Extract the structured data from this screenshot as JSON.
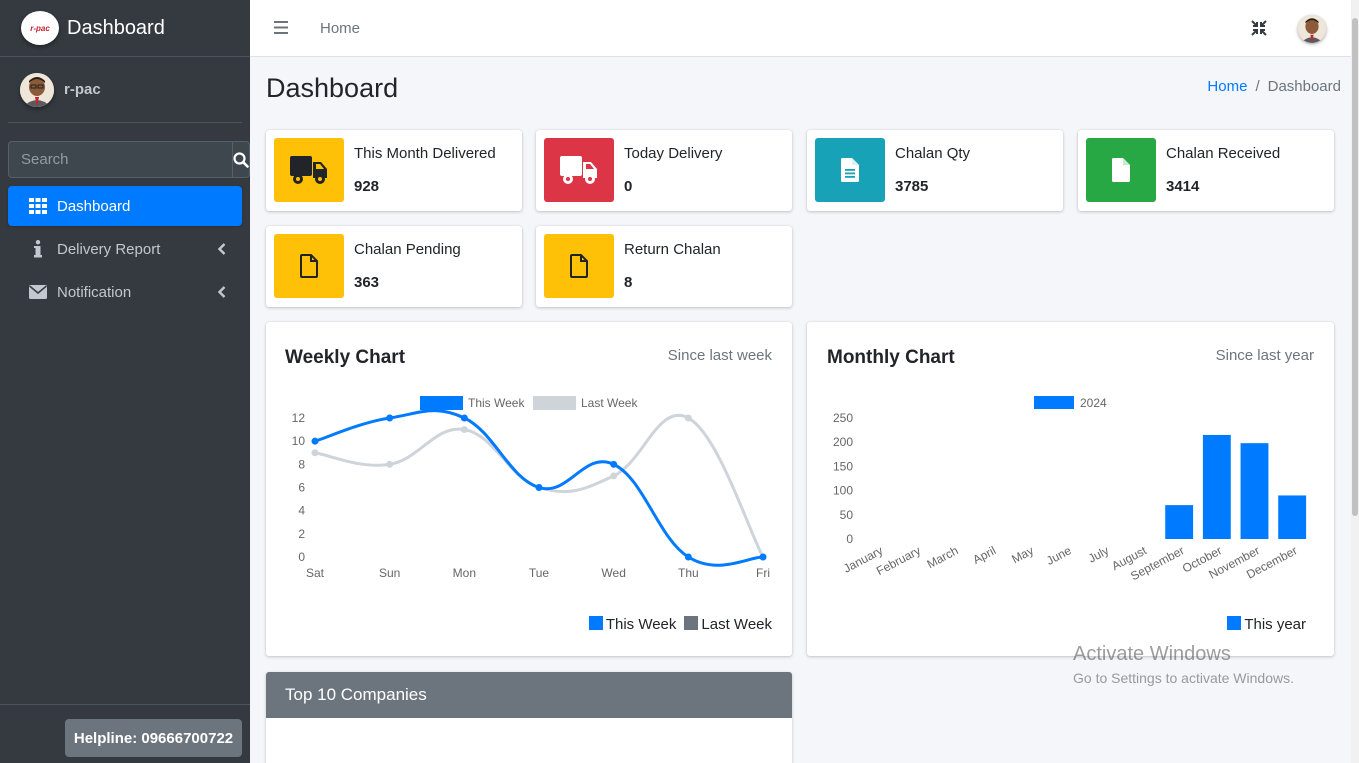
{
  "sidebar": {
    "brand_logo_text": "r-pac",
    "brand": "Dashboard",
    "user": "r-pac",
    "search_placeholder": "Search",
    "items": [
      {
        "label": "Dashboard",
        "icon": "grid-icon",
        "active": true
      },
      {
        "label": "Delivery Report",
        "icon": "info-icon",
        "active": false
      },
      {
        "label": "Notification",
        "icon": "envelope-icon",
        "active": false
      }
    ],
    "helpline": "Helpline: 09666700722"
  },
  "topbar": {
    "home": "Home"
  },
  "page": {
    "title": "Dashboard",
    "breadcrumb": {
      "home": "Home",
      "sep": "/",
      "current": "Dashboard"
    }
  },
  "info_boxes": [
    {
      "label": "This Month Delivered",
      "value": "928",
      "color": "#ffc107",
      "icon": "truck-icon"
    },
    {
      "label": "Today Delivery",
      "value": "0",
      "color": "#dc3545",
      "icon": "truck-icon"
    },
    {
      "label": "Chalan Qty",
      "value": "3785",
      "color": "#17a2b8",
      "icon": "file-text-icon"
    },
    {
      "label": "Chalan Received",
      "value": "3414",
      "color": "#28a745",
      "icon": "file-icon"
    },
    {
      "label": "Chalan Pending",
      "value": "363",
      "color": "#ffc107",
      "icon": "file-outline-icon"
    },
    {
      "label": "Return Chalan",
      "value": "8",
      "color": "#ffc107",
      "icon": "file-outline-icon"
    }
  ],
  "weekly": {
    "title": "Weekly Chart",
    "subtitle": "Since last week",
    "legend_this": "This Week",
    "legend_last": "Last Week"
  },
  "monthly": {
    "title": "Monthly Chart",
    "subtitle": "Since last year",
    "legend_series": "2024",
    "legend_bottom": "This year"
  },
  "companies": {
    "title": "Top 10 Companies"
  },
  "watermark": {
    "line1": "Activate Windows",
    "line2": "Go to Settings to activate Windows."
  },
  "chart_data": [
    {
      "type": "line",
      "title": "Weekly Chart",
      "categories": [
        "Sat",
        "Sun",
        "Mon",
        "Tue",
        "Wed",
        "Thu",
        "Fri"
      ],
      "ylim": [
        0,
        12
      ],
      "yticks": [
        0,
        2,
        4,
        6,
        8,
        10,
        12
      ],
      "series": [
        {
          "name": "This Week",
          "color": "#007bff",
          "values": [
            10,
            12,
            12,
            6,
            8,
            0,
            0
          ]
        },
        {
          "name": "Last Week",
          "color": "#ced4da",
          "values": [
            9,
            8,
            11,
            6,
            7,
            12,
            0
          ]
        }
      ]
    },
    {
      "type": "bar",
      "title": "Monthly Chart",
      "categories": [
        "January",
        "February",
        "March",
        "April",
        "May",
        "June",
        "July",
        "August",
        "September",
        "October",
        "November",
        "December"
      ],
      "ylim": [
        0,
        250
      ],
      "yticks": [
        0,
        50,
        100,
        150,
        200,
        250
      ],
      "series": [
        {
          "name": "2024",
          "color": "#007bff",
          "values": [
            0,
            0,
            0,
            0,
            0,
            0,
            0,
            0,
            70,
            215,
            198,
            90
          ]
        }
      ]
    }
  ]
}
